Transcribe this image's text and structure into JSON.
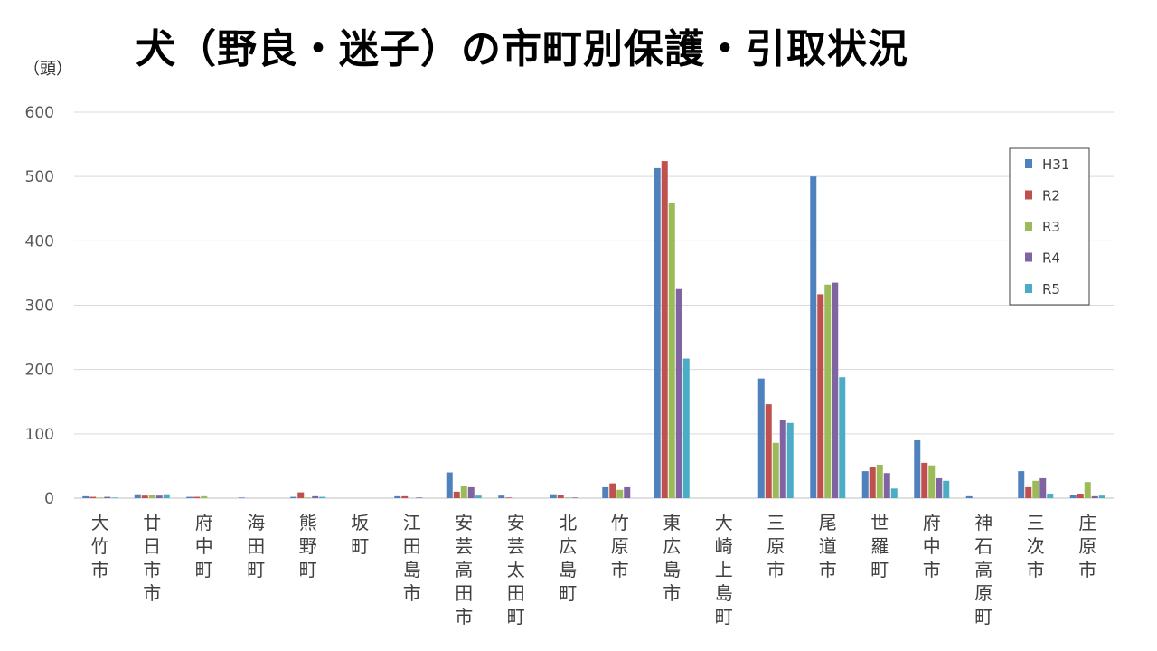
{
  "header": {
    "title": "犬（野良・迷子）の市町別保護・引取状況"
  },
  "chart_data": {
    "type": "bar",
    "title": "犬（野良・迷子）の市町別保護・引取状況",
    "ylabel": "（頭）",
    "xlabel": "",
    "ylim": [
      0,
      600
    ],
    "yticks": [
      0,
      100,
      200,
      300,
      400,
      500,
      600
    ],
    "grid": true,
    "legend_position": "right",
    "categories": [
      "大竹市",
      "廿日市市",
      "府中町",
      "海田町",
      "熊野町",
      "坂町",
      "江田島市",
      "安芸高田市",
      "安芸太田町",
      "北広島町",
      "竹原市",
      "東広島市",
      "大崎上島町",
      "三原市",
      "尾道市",
      "世羅町",
      "府中市",
      "神石高原町",
      "三次市",
      "庄原市"
    ],
    "series": [
      {
        "name": "H31",
        "color": "#4F81BD",
        "values": [
          3,
          6,
          2,
          1,
          2,
          0,
          3,
          40,
          4,
          6,
          17,
          513,
          0,
          186,
          500,
          42,
          90,
          3,
          42,
          5
        ]
      },
      {
        "name": "R2",
        "color": "#C0504D",
        "values": [
          2,
          4,
          2,
          0,
          9,
          0,
          3,
          10,
          1,
          5,
          23,
          524,
          0,
          146,
          317,
          48,
          55,
          0,
          17,
          7
        ]
      },
      {
        "name": "R3",
        "color": "#9BBB59",
        "values": [
          1,
          5,
          3,
          0,
          1,
          0,
          0,
          19,
          0,
          1,
          13,
          459,
          0,
          86,
          332,
          52,
          51,
          0,
          27,
          25
        ]
      },
      {
        "name": "R4",
        "color": "#8064A2",
        "values": [
          2,
          4,
          0,
          0,
          3,
          0,
          1,
          17,
          0,
          1,
          17,
          325,
          0,
          121,
          335,
          39,
          31,
          0,
          31,
          3
        ]
      },
      {
        "name": "R5",
        "color": "#4BACC6",
        "values": [
          1,
          6,
          0,
          0,
          2,
          0,
          0,
          4,
          0,
          0,
          0,
          217,
          0,
          117,
          188,
          15,
          27,
          0,
          7,
          4
        ]
      }
    ]
  }
}
